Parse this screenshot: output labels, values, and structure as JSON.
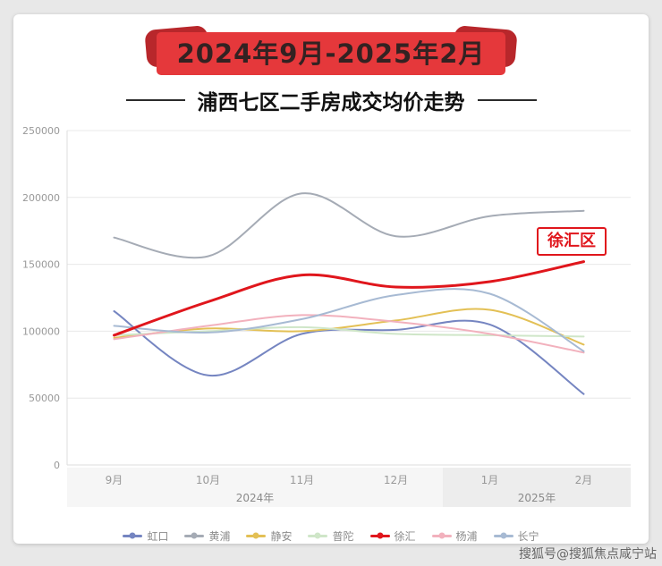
{
  "banner": {
    "date_range": "2024年9月-2025年2月"
  },
  "title": "浦西七区二手房成交均价走势",
  "annotation": {
    "label": "徐汇区"
  },
  "watermark": "搜狐号@搜狐焦点咸宁站",
  "colors": {
    "ribbon_red": "#e5383b",
    "ribbon_fold": "#b8272b",
    "annotation_red": "#e0161c",
    "grid": "#e8e8e8",
    "axis_band_left": "#f6f6f6",
    "axis_band_right": "#ededed"
  },
  "chart_data": {
    "type": "line",
    "title": "浦西七区二手房成交均价走势",
    "categories": [
      "9月",
      "10月",
      "11月",
      "12月",
      "1月",
      "2月"
    ],
    "year_groups": [
      {
        "label": "2024年",
        "from": 0,
        "to": 3
      },
      {
        "label": "2025年",
        "from": 4,
        "to": 5
      }
    ],
    "ylim": [
      0,
      250000
    ],
    "yticks": [
      0,
      50000,
      100000,
      150000,
      200000,
      250000
    ],
    "grid": true,
    "legend_position": "bottom",
    "smooth": true,
    "series": [
      {
        "name": "虹口",
        "color": "#7585c1",
        "width": 2,
        "emphasis": false,
        "values": [
          115000,
          67000,
          98000,
          101000,
          105000,
          53000
        ]
      },
      {
        "name": "黄浦",
        "color": "#a5abb5",
        "width": 2,
        "emphasis": false,
        "values": [
          170000,
          156000,
          203000,
          171000,
          186000,
          190000
        ]
      },
      {
        "name": "静安",
        "color": "#e3c055",
        "width": 2,
        "emphasis": false,
        "values": [
          95000,
          102000,
          100000,
          108000,
          116000,
          90000
        ]
      },
      {
        "name": "普陀",
        "color": "#cfe6c8",
        "width": 2,
        "emphasis": false,
        "values": [
          97000,
          100000,
          103000,
          98000,
          97000,
          96000
        ]
      },
      {
        "name": "徐汇",
        "color": "#e0161c",
        "width": 3,
        "emphasis": true,
        "values": [
          97000,
          122000,
          142000,
          133000,
          137000,
          152000
        ]
      },
      {
        "name": "杨浦",
        "color": "#f2b1bd",
        "width": 2,
        "emphasis": false,
        "values": [
          94000,
          104000,
          112000,
          107000,
          98000,
          84000
        ]
      },
      {
        "name": "长宁",
        "color": "#a7bad3",
        "width": 2,
        "emphasis": false,
        "values": [
          104000,
          99000,
          109000,
          127000,
          128000,
          85000
        ]
      }
    ]
  }
}
